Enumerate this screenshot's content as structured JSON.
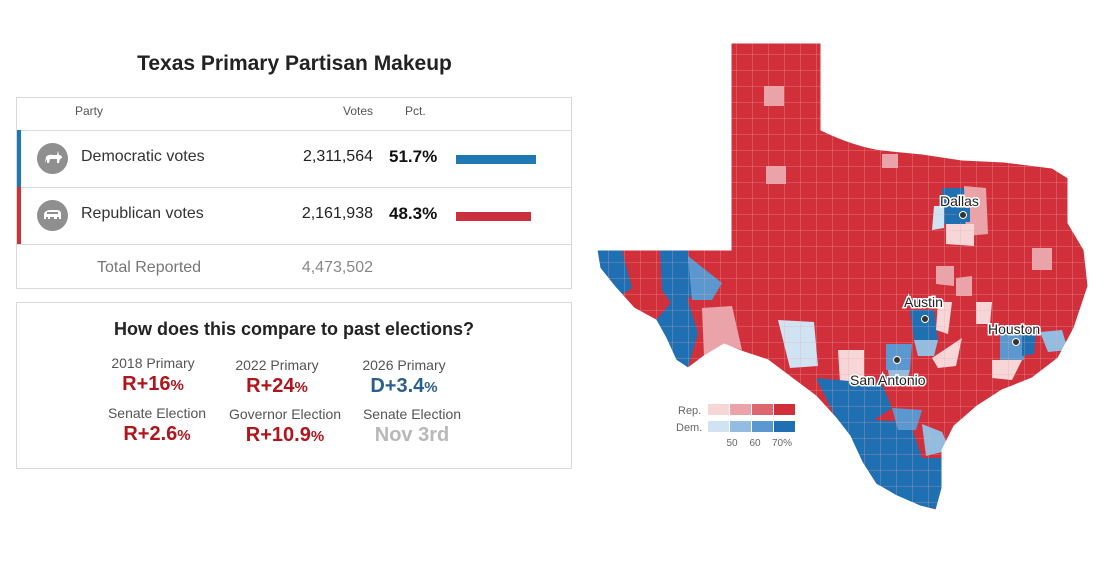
{
  "title": "Texas Primary Partisan Makeup",
  "table": {
    "headers": {
      "party": "Party",
      "votes": "Votes",
      "pct": "Pct."
    },
    "rows": [
      {
        "name": "Democratic votes",
        "votes": "2,311,564",
        "pct": "51.7%",
        "share": 0.517,
        "color": "#1f77b4"
      },
      {
        "name": "Republican votes",
        "votes": "2,161,938",
        "pct": "48.3%",
        "share": 0.483,
        "color": "#c9323d"
      }
    ],
    "total_label": "Total Reported",
    "total_value": "4,473,502"
  },
  "compare": {
    "title": "How does this compare to past elections?",
    "items": [
      {
        "label": "2018 Primary",
        "value": "R+16",
        "suffix": "%",
        "color": "#b0141c"
      },
      {
        "label": "2022 Primary",
        "value": "R+24",
        "suffix": "%",
        "color": "#b0141c"
      },
      {
        "label": "2026 Primary",
        "value": "D+3.4",
        "suffix": "%",
        "color": "#2b5f8e"
      },
      {
        "label": "Senate Election",
        "value": "R+2.6",
        "suffix": "%",
        "color": "#b0141c"
      },
      {
        "label": "Governor Election",
        "value": "R+10.9",
        "suffix": "%",
        "color": "#b0141c"
      },
      {
        "label": "Senate Election",
        "value": "Nov 3rd",
        "suffix": "",
        "color": "#b8b8b8"
      }
    ]
  },
  "map": {
    "cities": [
      "Dallas",
      "Austin",
      "Houston",
      "San Antonio"
    ],
    "legend": {
      "rep_label": "Rep.",
      "dem_label": "Dem.",
      "ticks": [
        "50",
        "60",
        "70%"
      ],
      "rep_colors": [
        "#f7d6d8",
        "#eaa3a9",
        "#dd6670",
        "#d1303b"
      ],
      "dem_colors": [
        "#cfe3f3",
        "#93bde0",
        "#5b98cf",
        "#1f6fb3"
      ]
    },
    "colors": {
      "rep": "#d1303b",
      "dem": "#1f6fb3",
      "county_line": "#e8a9ae"
    }
  }
}
